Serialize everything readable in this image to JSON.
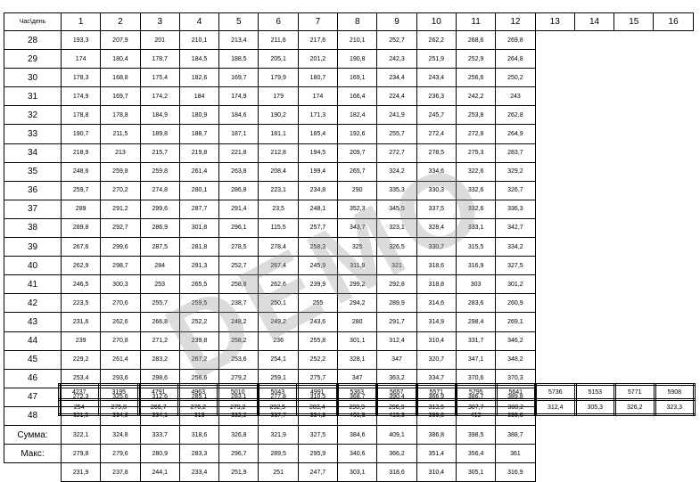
{
  "corner_label": "Час\\день",
  "days": [
    "1",
    "2",
    "3",
    "4",
    "5",
    "6",
    "7",
    "8",
    "9",
    "10",
    "11",
    "12",
    "13",
    "14",
    "15",
    "16"
  ],
  "rows": [
    {
      "hour": "28",
      "values": [
        "193,3",
        "207,9",
        "201",
        "210,1",
        "213,4",
        "211,6",
        "217,6",
        "210,1",
        "252,7",
        "262,2",
        "268,6",
        "269,8"
      ]
    },
    {
      "hour": "29",
      "values": [
        "174",
        "180,4",
        "178,7",
        "184,5",
        "188,5",
        "205,1",
        "201,2",
        "190,8",
        "242,3",
        "251,9",
        "252,9",
        "264,8"
      ]
    },
    {
      "hour": "30",
      "values": [
        "178,3",
        "168,8",
        "175,4",
        "182,6",
        "169,7",
        "179,9",
        "180,7",
        "169,1",
        "234,4",
        "243,4",
        "256,6",
        "250,2"
      ]
    },
    {
      "hour": "31",
      "values": [
        "174,9",
        "169,7",
        "174,2",
        "184",
        "174,9",
        "179",
        "174",
        "166,4",
        "224,4",
        "236,3",
        "242,2",
        "243"
      ]
    },
    {
      "hour": "32",
      "values": [
        "178,8",
        "178,8",
        "184,9",
        "180,9",
        "184,6",
        "190,2",
        "171,3",
        "182,4",
        "241,9",
        "245,7",
        "253,8",
        "262,8"
      ]
    },
    {
      "hour": "33",
      "values": [
        "190,7",
        "211,5",
        "189,8",
        "188,7",
        "187,1",
        "181,1",
        "185,4",
        "192,6",
        "255,7",
        "272,4",
        "272,8",
        "264,9"
      ]
    },
    {
      "hour": "34",
      "values": [
        "218,9",
        "213",
        "215,7",
        "219,8",
        "221,8",
        "212,8",
        "194,5",
        "209,7",
        "272,7",
        "278,5",
        "275,3",
        "283,7"
      ]
    },
    {
      "hour": "35",
      "values": [
        "248,6",
        "259,8",
        "259,8",
        "261,4",
        "263,8",
        "208,4",
        "199,4",
        "265,7",
        "324,2",
        "334,6",
        "322,6",
        "329,2"
      ]
    },
    {
      "hour": "36",
      "values": [
        "259,7",
        "270,2",
        "274,8",
        "280,1",
        "286,8",
        "223,1",
        "234,8",
        "290",
        "335,3",
        "330,3",
        "332,6",
        "326,7"
      ]
    },
    {
      "hour": "37",
      "values": [
        "289",
        "291,2",
        "299,6",
        "287,7",
        "291,4",
        "23,5",
        "248,1",
        "352,3",
        "345,5",
        "337,5",
        "332,6",
        "336,3"
      ]
    },
    {
      "hour": "38",
      "values": [
        "289,8",
        "292,7",
        "286,9",
        "301,8",
        "296,1",
        "115,5",
        "257,7",
        "343,7",
        "323,1",
        "328,4",
        "333,1",
        "342,7"
      ]
    },
    {
      "hour": "39",
      "values": [
        "267,6",
        "299,6",
        "287,5",
        "281,8",
        "278,5",
        "278,4",
        "258,3",
        "325",
        "326,5",
        "330,7",
        "315,5",
        "334,2"
      ]
    },
    {
      "hour": "40",
      "values": [
        "262,9",
        "298,7",
        "284",
        "291,3",
        "252,7",
        "267,4",
        "245,9",
        "311,9",
        "321",
        "318,6",
        "316,9",
        "327,5"
      ]
    },
    {
      "hour": "41",
      "values": [
        "246,5",
        "300,3",
        "253",
        "265,5",
        "258,8",
        "262,6",
        "239,9",
        "299,2",
        "292,8",
        "318,8",
        "303",
        "301,2"
      ]
    },
    {
      "hour": "42",
      "values": [
        "223,5",
        "270,6",
        "255,7",
        "259,5",
        "238,7",
        "250,1",
        "255",
        "294,2",
        "289,9",
        "314,6",
        "283,6",
        "260,9"
      ]
    },
    {
      "hour": "43",
      "values": [
        "231,6",
        "262,6",
        "266,8",
        "252,2",
        "248,2",
        "249,2",
        "243,6",
        "280",
        "291,7",
        "314,9",
        "298,4",
        "269,1"
      ]
    },
    {
      "hour": "44",
      "values": [
        "239",
        "270,8",
        "271,2",
        "239,8",
        "258,2",
        "236",
        "255,8",
        "301,1",
        "312,4",
        "310,4",
        "331,7",
        "346,2"
      ]
    },
    {
      "hour": "45",
      "values": [
        "229,2",
        "261,4",
        "283,2",
        "267,2",
        "253,6",
        "254,1",
        "252,2",
        "328,1",
        "347",
        "320,7",
        "347,1",
        "348,2"
      ]
    },
    {
      "hour": "46",
      "values": [
        "253,4",
        "293,6",
        "298,6",
        "256,6",
        "279,2",
        "259,1",
        "275,7",
        "347",
        "363,2",
        "334,7",
        "370,6",
        "370,3"
      ]
    },
    {
      "hour": "47",
      "values": [
        "272,3",
        "325,6",
        "312,6",
        "285,1",
        "283,1",
        "277,8",
        "310,5",
        "368,7",
        "390,4",
        "366,9",
        "386,7",
        "389,8"
      ]
    },
    {
      "hour": "48",
      "values": [
        "321,5",
        "334,8",
        "334,1",
        "313",
        "332,2",
        "337,7",
        "334,9",
        "401,8",
        "415,3",
        "399,6",
        "412",
        "399,6"
      ]
    },
    {
      "hour": "Сумма:",
      "values": [
        "322,1",
        "324,8",
        "333,7",
        "318,6",
        "326,8",
        "321,9",
        "327,5",
        "384,6",
        "409,1",
        "386,8",
        "398,5",
        "388,7"
      ]
    },
    {
      "hour": "Макс:",
      "values": [
        "279,8",
        "279,6",
        "280,9",
        "283,3",
        "296,7",
        "289,5",
        "295,9",
        "340,6",
        "366,2",
        "351,4",
        "356,4",
        "361"
      ]
    },
    {
      "hour": "",
      "values": [
        "231,9",
        "237,8",
        "244,1",
        "233,4",
        "251,9",
        "251",
        "247,7",
        "303,1",
        "318,6",
        "310,4",
        "305,1",
        "316,9"
      ]
    }
  ],
  "totals": {
    "sum": [
      "4237",
      "3195",
      "4791",
      "4963",
      "5010",
      "5043",
      "4991",
      "5363",
      "5657",
      "5571",
      "5795",
      "5641",
      "5736",
      "5153",
      "5771",
      "5908"
    ],
    "max": [
      "254",
      "275,8",
      "266,7",
      "276,2",
      "279,2",
      "292,5",
      "283,4",
      "298,9",
      "296,9",
      "313,5",
      "307,7",
      "308,2",
      "312,4",
      "305,3",
      "326,2",
      "323,3"
    ]
  },
  "watermark": "DEMO"
}
